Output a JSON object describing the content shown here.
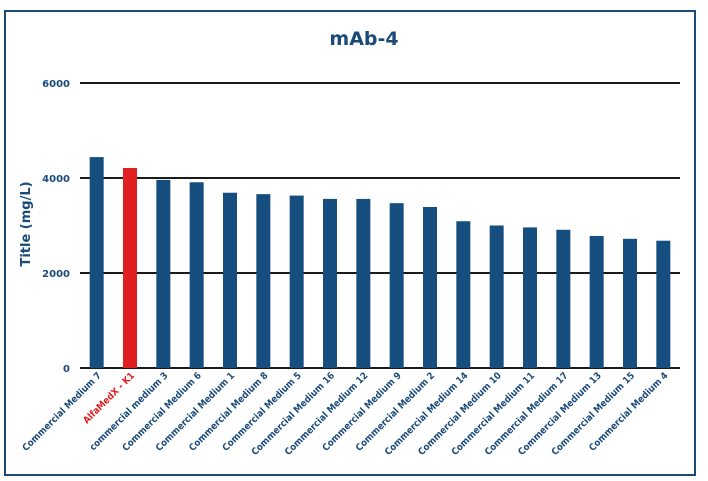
{
  "chart_data": {
    "type": "bar",
    "title": "mAb-4",
    "xlabel": "",
    "ylabel": "Title (mg/L)",
    "ylim": [
      0,
      6000
    ],
    "yticks": [
      0,
      2000,
      4000,
      6000
    ],
    "grid": true,
    "categories": [
      "Commercial Medium 7",
      "AlfaMedX - K1",
      "commercial medium 3",
      "Commercial Medium 6",
      "Commercial Medium 1",
      "Commercial Medium 8",
      "Commercial Medium 5",
      "Commercial Medium 16",
      "Commercial Medium 12",
      "Commercial Medium 9",
      "Commercial Medium 2",
      "Commercial Medium 14",
      "Commercial Medium 10",
      "Commercial Medium 11",
      "Commercial Medium 17",
      "Commercial Medium 13",
      "Commercial Medium 15",
      "Commercial Medium 4"
    ],
    "values": [
      4440,
      4210,
      3960,
      3910,
      3690,
      3660,
      3630,
      3560,
      3560,
      3470,
      3390,
      3090,
      3000,
      2960,
      2910,
      2780,
      2720,
      2680
    ],
    "highlight_index": 1,
    "colors": {
      "bar": "#174e80",
      "highlight": "#e02020",
      "text": "#1a4a7a",
      "grid": "#1a1a1a",
      "frame": "#1a4a7a"
    }
  }
}
